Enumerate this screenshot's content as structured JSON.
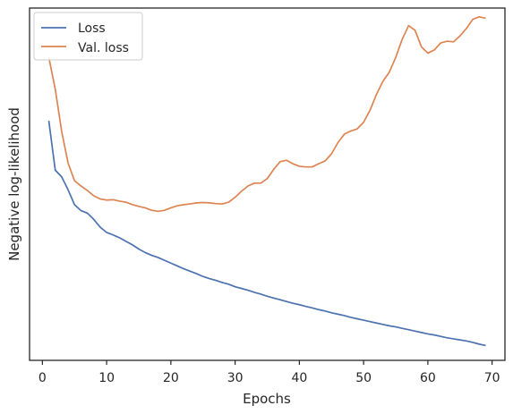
{
  "chart_data": {
    "type": "line",
    "xlabel": "Epochs",
    "ylabel": "Negative log-likelihood",
    "xlim": [
      -2,
      72
    ],
    "ylim": [
      0,
      100
    ],
    "xticks": [
      0,
      10,
      20,
      30,
      40,
      50,
      60,
      70
    ],
    "grid": false,
    "legend_position": "top-left",
    "series": [
      {
        "name": "Loss",
        "color": "#4c72b0",
        "x": [
          1,
          2,
          3,
          4,
          5,
          6,
          7,
          8,
          9,
          10,
          11,
          12,
          13,
          14,
          15,
          16,
          17,
          18,
          19,
          20,
          21,
          22,
          23,
          24,
          25,
          26,
          27,
          28,
          29,
          30,
          31,
          32,
          33,
          34,
          35,
          36,
          37,
          38,
          39,
          40,
          41,
          42,
          43,
          44,
          45,
          46,
          47,
          48,
          49,
          50,
          51,
          52,
          53,
          54,
          55,
          56,
          57,
          58,
          59,
          60,
          61,
          62,
          63,
          64,
          65,
          66,
          67,
          68,
          69
        ],
        "values": [
          68,
          54,
          52.1,
          48.4,
          44.2,
          42.5,
          41.8,
          40.0,
          37.8,
          36.3,
          35.6,
          34.8,
          33.8,
          32.8,
          31.6,
          30.6,
          29.8,
          29.2,
          28.4,
          27.6,
          26.8,
          26.0,
          25.3,
          24.6,
          23.8,
          23.2,
          22.7,
          22.1,
          21.6,
          20.9,
          20.4,
          19.9,
          19.3,
          18.8,
          18.2,
          17.7,
          17.2,
          16.7,
          16.2,
          15.8,
          15.3,
          14.9,
          14.4,
          14.0,
          13.5,
          13.1,
          12.7,
          12.2,
          11.8,
          11.4,
          11.0,
          10.6,
          10.2,
          9.8,
          9.5,
          9.1,
          8.7,
          8.3,
          7.9,
          7.5,
          7.2,
          6.8,
          6.4,
          6.1,
          5.8,
          5.5,
          5.1,
          4.6,
          4.2
        ]
      },
      {
        "name": "Val. loss",
        "color": "#dd8452",
        "x": [
          1,
          2,
          3,
          4,
          5,
          6,
          7,
          8,
          9,
          10,
          11,
          12,
          13,
          14,
          15,
          16,
          17,
          18,
          19,
          20,
          21,
          22,
          23,
          24,
          25,
          26,
          27,
          28,
          29,
          30,
          31,
          32,
          33,
          34,
          35,
          36,
          37,
          38,
          39,
          40,
          41,
          42,
          43,
          44,
          45,
          46,
          47,
          48,
          49,
          50,
          51,
          52,
          53,
          54,
          55,
          56,
          57,
          58,
          59,
          60,
          61,
          62,
          63,
          64,
          65,
          66,
          67,
          68,
          69
        ],
        "values": [
          86,
          77,
          65,
          56,
          51,
          49.5,
          48.2,
          46.7,
          45.8,
          45.5,
          45.6,
          45.2,
          44.9,
          44.2,
          43.7,
          43.3,
          42.6,
          42.3,
          42.6,
          43.3,
          43.9,
          44.2,
          44.4,
          44.7,
          44.8,
          44.7,
          44.5,
          44.4,
          44.9,
          46.3,
          48.0,
          49.5,
          50.3,
          50.3,
          51.6,
          54.2,
          56.4,
          56.8,
          55.8,
          55.1,
          54.9,
          54.9,
          55.8,
          56.6,
          58.6,
          61.8,
          64.2,
          65.1,
          65.7,
          67.6,
          71.0,
          75.5,
          79.2,
          81.8,
          86.0,
          91.1,
          95.0,
          93.7,
          89.0,
          87.2,
          88.1,
          90.1,
          90.6,
          90.4,
          92.1,
          94.2,
          96.8,
          97.5,
          97.1
        ]
      }
    ]
  }
}
